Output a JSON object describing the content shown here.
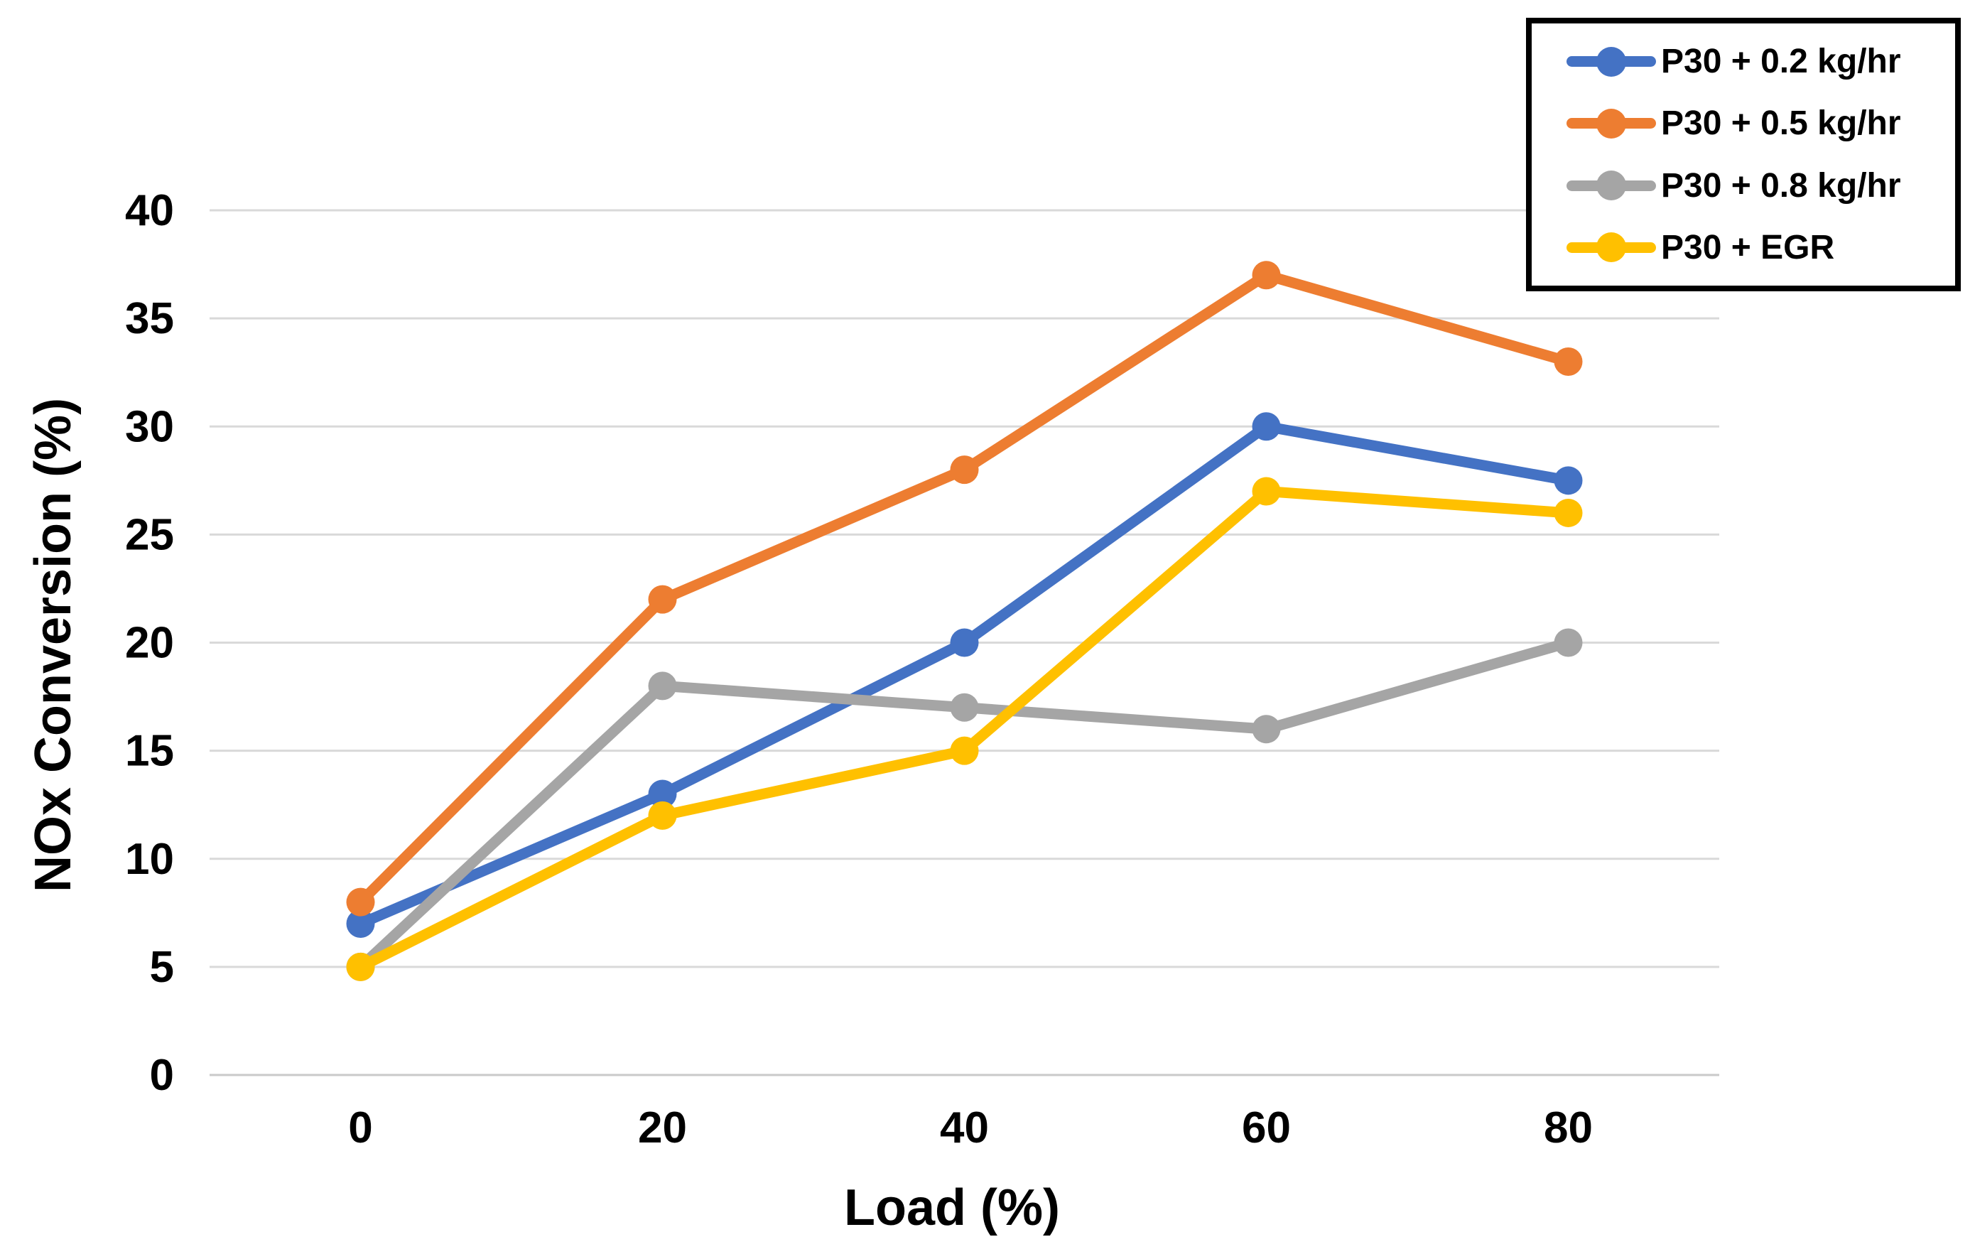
{
  "chart_data": {
    "type": "line",
    "title": "",
    "xlabel": "Load (%)",
    "ylabel": "NOx Conversion (%)",
    "x_categories": [
      "0",
      "20",
      "40",
      "60",
      "80"
    ],
    "y_ticks": [
      0,
      5,
      10,
      15,
      20,
      25,
      30,
      35,
      40
    ],
    "ylim": [
      0,
      40
    ],
    "grid": "horizontal-major-only",
    "legend_position": "top-right",
    "marker": "circle",
    "series": [
      {
        "name": "P30 + 0.2 kg/hr",
        "color": "#4472C4",
        "values": [
          7,
          13,
          20,
          30,
          27.5
        ]
      },
      {
        "name": "P30 + 0.5 kg/hr",
        "color": "#ED7D31",
        "values": [
          8,
          22,
          28,
          37,
          33
        ]
      },
      {
        "name": "P30 + 0.8 kg/hr",
        "color": "#A5A5A5",
        "values": [
          5,
          18,
          17,
          16,
          20
        ]
      },
      {
        "name": "P30 + EGR",
        "color": "#FFC000",
        "values": [
          5,
          12,
          15,
          27,
          26
        ]
      }
    ]
  },
  "colors": {
    "background": "#FFFFFF",
    "gridline": "#D9D9D9",
    "axis_line": "#C9C9C9",
    "text": "#000000",
    "legend_border": "#000000"
  }
}
